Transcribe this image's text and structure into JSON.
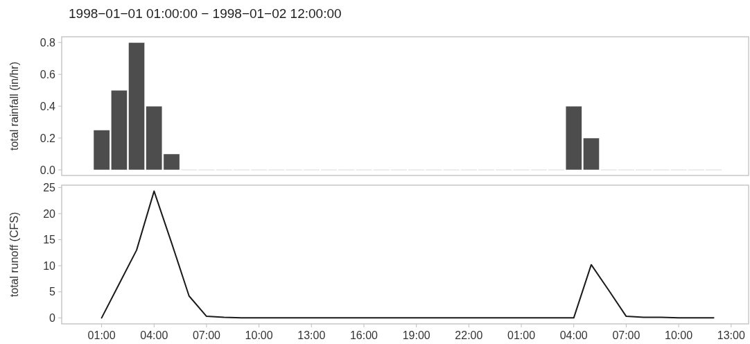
{
  "chart_data": [
    {
      "type": "bar",
      "title": "1998−01−01 01:00:00 − 1998−01−02 12:00:00",
      "ylabel": "total rainfall (in/hr)",
      "x": [
        "1998-01-01T01:00",
        "1998-01-01T02:00",
        "1998-01-01T03:00",
        "1998-01-01T04:00",
        "1998-01-01T05:00",
        "1998-01-01T06:00",
        "1998-01-01T07:00",
        "1998-01-01T08:00",
        "1998-01-01T09:00",
        "1998-01-01T10:00",
        "1998-01-01T11:00",
        "1998-01-01T12:00",
        "1998-01-01T13:00",
        "1998-01-01T14:00",
        "1998-01-01T15:00",
        "1998-01-01T16:00",
        "1998-01-01T17:00",
        "1998-01-01T18:00",
        "1998-01-01T19:00",
        "1998-01-01T20:00",
        "1998-01-01T21:00",
        "1998-01-01T22:00",
        "1998-01-01T23:00",
        "1998-01-02T00:00",
        "1998-01-02T01:00",
        "1998-01-02T02:00",
        "1998-01-02T03:00",
        "1998-01-02T04:00",
        "1998-01-02T05:00",
        "1998-01-02T06:00",
        "1998-01-02T07:00",
        "1998-01-02T08:00",
        "1998-01-02T09:00",
        "1998-01-02T10:00",
        "1998-01-02T11:00",
        "1998-01-02T12:00"
      ],
      "series": [
        {
          "color": "#4d4d4d",
          "values": [
            0.25,
            0.5,
            0.8,
            0.4,
            0.1,
            0,
            0,
            0,
            0,
            0,
            0,
            0,
            0,
            0,
            0,
            0,
            0,
            0,
            0,
            0,
            0,
            0,
            0,
            0,
            0,
            0,
            0,
            0.4,
            0.2,
            0,
            0,
            0,
            0,
            0,
            0,
            0
          ]
        }
      ],
      "xlim": [
        "1997-12-31T22:43",
        "1998-01-02T14:00"
      ],
      "ylim": [
        -0.035,
        0.836
      ],
      "yticks": [
        {
          "value": 0,
          "label": "0.0"
        },
        0.2,
        0.4,
        0.6,
        0.8
      ],
      "tick_labels": "y",
      "grid": false
    },
    {
      "type": "line",
      "ylabel": "total runoff (CFS)",
      "x": [
        "1998-01-01T01:00",
        "1998-01-01T02:00",
        "1998-01-01T03:00",
        "1998-01-01T04:00",
        "1998-01-01T05:00",
        "1998-01-01T06:00",
        "1998-01-01T07:00",
        "1998-01-01T08:00",
        "1998-01-01T09:00",
        "1998-01-01T10:00",
        "1998-01-01T11:00",
        "1998-01-01T12:00",
        "1998-01-01T13:00",
        "1998-01-01T14:00",
        "1998-01-01T15:00",
        "1998-01-01T16:00",
        "1998-01-01T17:00",
        "1998-01-01T18:00",
        "1998-01-01T19:00",
        "1998-01-01T20:00",
        "1998-01-01T21:00",
        "1998-01-01T22:00",
        "1998-01-01T23:00",
        "1998-01-02T00:00",
        "1998-01-02T01:00",
        "1998-01-02T02:00",
        "1998-01-02T03:00",
        "1998-01-02T04:00",
        "1998-01-02T05:00",
        "1998-01-02T06:00",
        "1998-01-02T07:00",
        "1998-01-02T08:00",
        "1998-01-02T09:00",
        "1998-01-02T10:00",
        "1998-01-02T11:00",
        "1998-01-02T12:00"
      ],
      "series": [
        {
          "color": "#1a1a1a",
          "values": [
            0,
            6.5,
            13,
            24.3,
            14.4,
            4.2,
            0.3,
            0.1,
            0,
            0,
            0,
            0,
            0,
            0,
            0,
            0,
            0,
            0,
            0,
            0,
            0,
            0,
            0,
            0,
            0,
            0,
            0,
            0,
            10.2,
            5.3,
            0.3,
            0.1,
            0.1,
            0,
            0,
            0
          ]
        }
      ],
      "xlim": [
        "1997-12-31T22:43",
        "1998-01-02T14:00"
      ],
      "ylim": [
        -1.15,
        25.45
      ],
      "xticks": [
        {
          "value": "1998-01-01T01:00",
          "label": "01:00"
        },
        {
          "value": "1998-01-01T04:00",
          "label": "04:00"
        },
        {
          "value": "1998-01-01T07:00",
          "label": "07:00"
        },
        {
          "value": "1998-01-01T10:00",
          "label": "10:00"
        },
        {
          "value": "1998-01-01T13:00",
          "label": "13:00"
        },
        {
          "value": "1998-01-01T16:00",
          "label": "16:00"
        },
        {
          "value": "1998-01-01T19:00",
          "label": "19:00"
        },
        {
          "value": "1998-01-01T22:00",
          "label": "22:00"
        },
        {
          "value": "1998-01-02T01:00",
          "label": "01:00"
        },
        {
          "value": "1998-01-02T04:00",
          "label": "04:00"
        },
        {
          "value": "1998-01-02T07:00",
          "label": "07:00"
        },
        {
          "value": "1998-01-02T10:00",
          "label": "10:00"
        },
        {
          "value": "1998-01-02T13:00",
          "label": "13:00"
        }
      ],
      "yticks": [
        0,
        5,
        10,
        15,
        20,
        25
      ],
      "grid": false,
      "marker": "none",
      "line_style": "solid"
    }
  ]
}
